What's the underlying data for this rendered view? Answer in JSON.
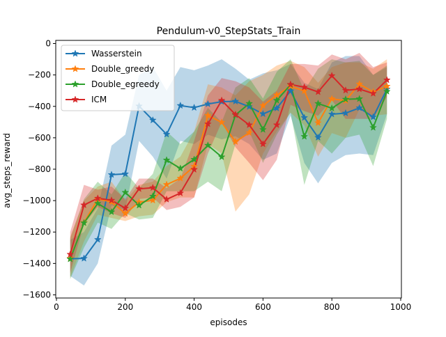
{
  "chart_data": {
    "type": "line",
    "title": "Pendulum-v0_StepStats_Train",
    "xlabel": "episodes",
    "ylabel": "avg_steps_reward",
    "xlim": [
      -2,
      1002
    ],
    "ylim": [
      -1620,
      20
    ],
    "xticks": [
      0,
      200,
      400,
      600,
      800,
      1000
    ],
    "yticks": [
      0,
      -200,
      -400,
      -600,
      -800,
      -1000,
      -1200,
      -1400,
      -1600
    ],
    "grid": false,
    "legend_position": "top-left",
    "x": [
      40,
      80,
      120,
      160,
      200,
      240,
      280,
      320,
      360,
      400,
      440,
      480,
      520,
      560,
      600,
      640,
      680,
      720,
      760,
      800,
      840,
      880,
      920,
      960
    ],
    "series": [
      {
        "name": "Wasserstein",
        "color": "#1f77b4",
        "values": [
          -1370,
          -1368,
          -1248,
          -835,
          -830,
          -398,
          -488,
          -578,
          -395,
          -408,
          -385,
          -370,
          -368,
          -402,
          -448,
          -412,
          -302,
          -472,
          -598,
          -450,
          -443,
          -410,
          -468,
          -290
        ],
        "upper": [
          -1250,
          -1200,
          -1050,
          -650,
          -580,
          -200,
          -150,
          -300,
          -150,
          -170,
          -140,
          -100,
          -160,
          -230,
          -190,
          -170,
          -130,
          -250,
          -290,
          -120,
          -80,
          -80,
          -200,
          -150
        ],
        "lower": [
          -1480,
          -1540,
          -1400,
          -1030,
          -1060,
          -620,
          -720,
          -860,
          -620,
          -640,
          -580,
          -610,
          -590,
          -640,
          -740,
          -700,
          -460,
          -760,
          -890,
          -760,
          -710,
          -700,
          -710,
          -450
        ]
      },
      {
        "name": "Double_greedy",
        "color": "#ff7f0e",
        "values": [
          -1368,
          -1140,
          -990,
          -1008,
          -1082,
          -1010,
          -998,
          -898,
          -858,
          -782,
          -458,
          -502,
          -625,
          -568,
          -395,
          -328,
          -272,
          -302,
          -505,
          -352,
          -364,
          -258,
          -308,
          -272
        ],
        "upper": [
          -1230,
          -1000,
          -910,
          -880,
          -1000,
          -900,
          -880,
          -780,
          -720,
          -560,
          -260,
          -280,
          -330,
          -240,
          -200,
          -140,
          -110,
          -150,
          -250,
          -150,
          -120,
          -120,
          -160,
          -100
        ],
        "lower": [
          -1490,
          -1260,
          -1090,
          -1110,
          -1130,
          -1100,
          -1090,
          -1010,
          -980,
          -980,
          -640,
          -700,
          -1070,
          -960,
          -700,
          -560,
          -440,
          -520,
          -720,
          -570,
          -600,
          -420,
          -460,
          -450
        ]
      },
      {
        "name": "Double_egreedy",
        "color": "#2ca02c",
        "values": [
          -1372,
          -1142,
          -1018,
          -1072,
          -948,
          -1030,
          -972,
          -742,
          -795,
          -738,
          -648,
          -722,
          -455,
          -382,
          -548,
          -362,
          -262,
          -592,
          -382,
          -412,
          -355,
          -352,
          -535,
          -305
        ],
        "upper": [
          -1240,
          -990,
          -880,
          -960,
          -820,
          -920,
          -830,
          -560,
          -640,
          -560,
          -410,
          -500,
          -280,
          -220,
          -350,
          -180,
          -100,
          -300,
          -160,
          -100,
          -120,
          -110,
          -200,
          -140
        ],
        "lower": [
          -1500,
          -1300,
          -1140,
          -1180,
          -1080,
          -1120,
          -1110,
          -940,
          -940,
          -940,
          -880,
          -940,
          -640,
          -560,
          -760,
          -580,
          -440,
          -900,
          -620,
          -700,
          -600,
          -580,
          -780,
          -480
        ]
      },
      {
        "name": "ICM",
        "color": "#d62728",
        "values": [
          -1342,
          -1028,
          -985,
          -998,
          -1048,
          -925,
          -918,
          -992,
          -952,
          -802,
          -512,
          -362,
          -452,
          -518,
          -640,
          -518,
          -260,
          -278,
          -308,
          -205,
          -298,
          -290,
          -318,
          -232
        ],
        "upper": [
          -1200,
          -900,
          -930,
          -910,
          -990,
          -860,
          -860,
          -920,
          -860,
          -620,
          -330,
          -220,
          -240,
          -280,
          -370,
          -300,
          -130,
          -130,
          -140,
          -70,
          -100,
          -60,
          -150,
          -120
        ],
        "lower": [
          -1460,
          -1150,
          -1040,
          -1080,
          -1110,
          -990,
          -980,
          -1060,
          -1040,
          -980,
          -700,
          -500,
          -660,
          -760,
          -870,
          -740,
          -390,
          -430,
          -460,
          -360,
          -480,
          -480,
          -480,
          -340
        ]
      }
    ]
  }
}
